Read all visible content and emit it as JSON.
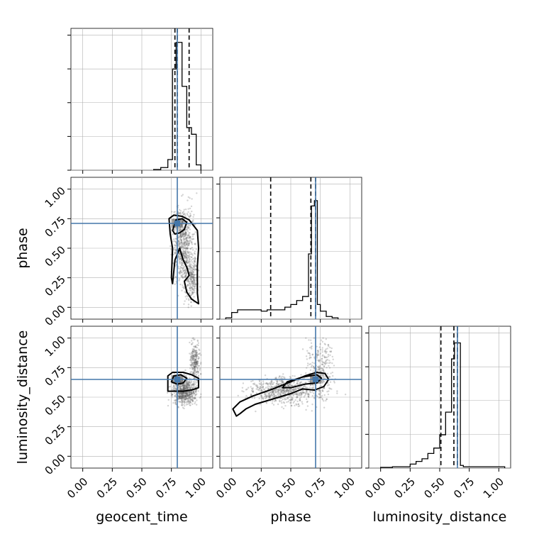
{
  "chart_data": {
    "type": "corner",
    "parameters": [
      "geocent_time",
      "phase",
      "luminosity_distance"
    ],
    "axis_range": [
      -0.1,
      1.1
    ],
    "tick_labels": [
      "0.00",
      "0.25",
      "0.50",
      "0.75",
      "1.00"
    ],
    "grid": true,
    "colors": {
      "truth": "#4477aa",
      "hist": "#000000",
      "points": "#555555",
      "grid": "#b0b0b0"
    },
    "truths": {
      "geocent_time": 0.8,
      "phase": 0.71,
      "luminosity_distance": 0.65
    },
    "marginals": [
      {
        "parameter": "geocent_time",
        "quantiles": [
          0.78,
          0.8,
          0.9
        ],
        "bins": [
          [
            0.6,
            0.66,
            0.005
          ],
          [
            0.66,
            0.72,
            0.02
          ],
          [
            0.72,
            0.76,
            0.08
          ],
          [
            0.76,
            0.79,
            0.76
          ],
          [
            0.79,
            0.84,
            0.96
          ],
          [
            0.84,
            0.88,
            0.63
          ],
          [
            0.88,
            0.92,
            0.32
          ],
          [
            0.92,
            0.96,
            0.27
          ],
          [
            0.96,
            1.0,
            0.04
          ]
        ]
      },
      {
        "parameter": "phase",
        "quantiles": [
          0.33,
          0.67,
          0.71
        ],
        "bins": [
          [
            -0.05,
            0.0,
            0.01
          ],
          [
            0.0,
            0.05,
            0.05
          ],
          [
            0.05,
            0.25,
            0.07
          ],
          [
            0.25,
            0.3,
            0.06
          ],
          [
            0.3,
            0.45,
            0.07
          ],
          [
            0.45,
            0.5,
            0.09
          ],
          [
            0.5,
            0.55,
            0.11
          ],
          [
            0.55,
            0.6,
            0.14
          ],
          [
            0.6,
            0.65,
            0.17
          ],
          [
            0.65,
            0.675,
            0.49
          ],
          [
            0.675,
            0.7,
            0.85
          ],
          [
            0.7,
            0.725,
            0.89
          ],
          [
            0.725,
            0.75,
            0.11
          ],
          [
            0.75,
            0.8,
            0.06
          ],
          [
            0.8,
            0.85,
            0.02
          ],
          [
            0.85,
            0.9,
            0.01
          ]
        ]
      },
      {
        "parameter": "luminosity_distance",
        "quantiles": [
          0.51,
          0.62,
          0.65
        ],
        "bins": [
          [
            0.0,
            0.1,
            0.005
          ],
          [
            0.1,
            0.25,
            0.01
          ],
          [
            0.25,
            0.3,
            0.03
          ],
          [
            0.3,
            0.35,
            0.05
          ],
          [
            0.35,
            0.4,
            0.07
          ],
          [
            0.4,
            0.45,
            0.11
          ],
          [
            0.45,
            0.5,
            0.15
          ],
          [
            0.5,
            0.55,
            0.25
          ],
          [
            0.55,
            0.6,
            0.42
          ],
          [
            0.6,
            0.625,
            0.82
          ],
          [
            0.625,
            0.675,
            0.94
          ],
          [
            0.675,
            0.7,
            0.02
          ],
          [
            0.7,
            1.05,
            0.01
          ]
        ]
      }
    ],
    "contours": [
      {
        "x": "geocent_time",
        "y": "phase",
        "levels": [
          [
            [
              0.75,
              0.25
            ],
            [
              0.76,
              0.5
            ],
            [
              0.74,
              0.62
            ],
            [
              0.73,
              0.75
            ],
            [
              0.77,
              0.78
            ],
            [
              0.84,
              0.77
            ],
            [
              0.9,
              0.74
            ],
            [
              0.97,
              0.65
            ],
            [
              0.98,
              0.5
            ],
            [
              0.97,
              0.35
            ],
            [
              0.97,
              0.12
            ],
            [
              0.98,
              0.03
            ],
            [
              0.92,
              0.07
            ],
            [
              0.88,
              0.13
            ],
            [
              0.86,
              0.22
            ],
            [
              0.9,
              0.27
            ],
            [
              0.88,
              0.34
            ],
            [
              0.85,
              0.4
            ],
            [
              0.82,
              0.5
            ],
            [
              0.78,
              0.4
            ],
            [
              0.76,
              0.2
            ],
            [
              0.75,
              0.25
            ]
          ],
          [
            [
              0.76,
              0.65
            ],
            [
              0.79,
              0.74
            ],
            [
              0.84,
              0.75
            ],
            [
              0.88,
              0.72
            ],
            [
              0.86,
              0.66
            ],
            [
              0.82,
              0.63
            ],
            [
              0.78,
              0.62
            ],
            [
              0.76,
              0.65
            ]
          ]
        ]
      },
      {
        "x": "geocent_time",
        "y": "luminosity_distance",
        "levels": [
          [
            [
              0.72,
              0.55
            ],
            [
              0.72,
              0.68
            ],
            [
              0.76,
              0.71
            ],
            [
              0.85,
              0.71
            ],
            [
              0.92,
              0.69
            ],
            [
              0.98,
              0.66
            ],
            [
              0.98,
              0.58
            ],
            [
              0.92,
              0.56
            ],
            [
              0.85,
              0.55
            ],
            [
              0.78,
              0.55
            ],
            [
              0.72,
              0.55
            ]
          ],
          [
            [
              0.75,
              0.63
            ],
            [
              0.77,
              0.68
            ],
            [
              0.83,
              0.69
            ],
            [
              0.88,
              0.66
            ],
            [
              0.85,
              0.62
            ],
            [
              0.8,
              0.61
            ],
            [
              0.75,
              0.63
            ]
          ]
        ]
      },
      {
        "x": "phase",
        "y": "luminosity_distance",
        "levels": [
          [
            [
              0.04,
              0.34
            ],
            [
              0.01,
              0.4
            ],
            [
              0.07,
              0.46
            ],
            [
              0.18,
              0.51
            ],
            [
              0.35,
              0.57
            ],
            [
              0.5,
              0.63
            ],
            [
              0.62,
              0.68
            ],
            [
              0.72,
              0.71
            ],
            [
              0.79,
              0.7
            ],
            [
              0.82,
              0.65
            ],
            [
              0.78,
              0.59
            ],
            [
              0.7,
              0.56
            ],
            [
              0.6,
              0.57
            ],
            [
              0.5,
              0.53
            ],
            [
              0.4,
              0.5
            ],
            [
              0.3,
              0.47
            ],
            [
              0.2,
              0.44
            ],
            [
              0.12,
              0.4
            ],
            [
              0.07,
              0.36
            ],
            [
              0.04,
              0.34
            ]
          ],
          [
            [
              0.43,
              0.58
            ],
            [
              0.47,
              0.63
            ],
            [
              0.6,
              0.67
            ],
            [
              0.72,
              0.69
            ],
            [
              0.76,
              0.66
            ],
            [
              0.72,
              0.62
            ],
            [
              0.62,
              0.61
            ],
            [
              0.5,
              0.58
            ],
            [
              0.43,
              0.58
            ]
          ]
        ]
      }
    ],
    "scatter_density": [
      {
        "x": "geocent_time",
        "y": "phase",
        "centers": [
          [
            0.85,
            0.55
          ],
          [
            0.92,
            0.25
          ]
        ],
        "spread": [
          [
            0.06,
            0.22
          ],
          [
            0.04,
            0.14
          ]
        ]
      },
      {
        "x": "geocent_time",
        "y": "luminosity_distance",
        "centers": [
          [
            0.86,
            0.55
          ],
          [
            0.95,
            0.8
          ]
        ],
        "spread": [
          [
            0.07,
            0.08
          ],
          [
            0.03,
            0.12
          ]
        ]
      },
      {
        "x": "phase",
        "y": "luminosity_distance",
        "centers": [
          [
            0.45,
            0.55
          ],
          [
            0.75,
            0.75
          ]
        ],
        "spread": [
          [
            0.22,
            0.08
          ],
          [
            0.08,
            0.15
          ]
        ]
      }
    ]
  }
}
